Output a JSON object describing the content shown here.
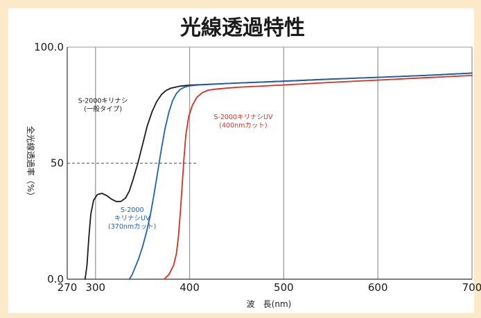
{
  "chart_data": {
    "type": "line",
    "title": "光線透過特性",
    "xlabel": "波　長(nm)",
    "ylabel": "全光線透過率（%）",
    "xlim": [
      270,
      700
    ],
    "ylim": [
      0,
      100
    ],
    "x_ticks": [
      {
        "value": 270,
        "label": "270"
      },
      {
        "value": 300,
        "label": "300"
      },
      {
        "value": 400,
        "label": "400"
      },
      {
        "value": 500,
        "label": "500"
      },
      {
        "value": 600,
        "label": "600"
      },
      {
        "value": 700,
        "label": "700"
      }
    ],
    "y_ticks": [
      {
        "value": 0,
        "label": "0.0"
      },
      {
        "value": 50,
        "label": "50"
      },
      {
        "value": 100,
        "label": "100.0"
      }
    ],
    "grid_x": [
      300,
      400,
      500,
      600,
      700
    ],
    "reference_line": {
      "y": 50,
      "x_to": 407,
      "style": "dashed"
    },
    "series": [
      {
        "name": "S-2000キリナシ（一般タイプ）",
        "label_lines": [
          "S-2000キリナシ",
          "(一般タイプ)"
        ],
        "color": "#1a1a1a",
        "label_at": {
          "x": 308,
          "y": 76
        },
        "points": [
          [
            289,
            0
          ],
          [
            291,
            6
          ],
          [
            293,
            18
          ],
          [
            295,
            28
          ],
          [
            298,
            34
          ],
          [
            302,
            36.5
          ],
          [
            307,
            37
          ],
          [
            312,
            36
          ],
          [
            317,
            34.5
          ],
          [
            322,
            33.5
          ],
          [
            327,
            33.5
          ],
          [
            332,
            35
          ],
          [
            336,
            38
          ],
          [
            340,
            43
          ],
          [
            345,
            50
          ],
          [
            350,
            58
          ],
          [
            355,
            66
          ],
          [
            360,
            72
          ],
          [
            365,
            76.5
          ],
          [
            370,
            79.5
          ],
          [
            375,
            81.3
          ],
          [
            380,
            82.3
          ],
          [
            390,
            83.2
          ],
          [
            400,
            83.6
          ],
          [
            450,
            84.5
          ],
          [
            500,
            85.3
          ],
          [
            550,
            86.2
          ],
          [
            600,
            87.0
          ],
          [
            650,
            87.8
          ],
          [
            700,
            88.8
          ]
        ]
      },
      {
        "name": "S-2000キリナシUV（370nmカット）",
        "label_lines": [
          "S-2000",
          "キリナシUV",
          "(370nmカット)"
        ],
        "color": "#1f5fb0",
        "label_at": {
          "x": 339,
          "y": 29
        },
        "points": [
          [
            336,
            0
          ],
          [
            339,
            2
          ],
          [
            342,
            5
          ],
          [
            346,
            9
          ],
          [
            350,
            14
          ],
          [
            354,
            20
          ],
          [
            358,
            27
          ],
          [
            362,
            36
          ],
          [
            366,
            46
          ],
          [
            370,
            56
          ],
          [
            374,
            65
          ],
          [
            378,
            72
          ],
          [
            382,
            77
          ],
          [
            386,
            80
          ],
          [
            390,
            81.8
          ],
          [
            395,
            82.8
          ],
          [
            400,
            83.3
          ],
          [
            410,
            83.7
          ],
          [
            450,
            84.5
          ],
          [
            500,
            85.3
          ],
          [
            550,
            86.2
          ],
          [
            600,
            87.0
          ],
          [
            650,
            87.8
          ],
          [
            700,
            88.8
          ]
        ]
      },
      {
        "name": "S-2000キリナシUV（400nmカット）",
        "label_lines": [
          "S-2000キリナシUV",
          "(400nmカット)"
        ],
        "color": "#d62f24",
        "label_at": {
          "x": 457,
          "y": 69
        },
        "points": [
          [
            373,
            0
          ],
          [
            378,
            2
          ],
          [
            383,
            6
          ],
          [
            386,
            11
          ],
          [
            388,
            18
          ],
          [
            390,
            28
          ],
          [
            392,
            40
          ],
          [
            394,
            52
          ],
          [
            396,
            62
          ],
          [
            399,
            70
          ],
          [
            403,
            75
          ],
          [
            408,
            78.5
          ],
          [
            414,
            80.5
          ],
          [
            420,
            81.5
          ],
          [
            430,
            82.0
          ],
          [
            450,
            82.7
          ],
          [
            500,
            83.7
          ],
          [
            550,
            84.8
          ],
          [
            600,
            85.8
          ],
          [
            650,
            86.8
          ],
          [
            700,
            87.8
          ]
        ]
      }
    ]
  }
}
